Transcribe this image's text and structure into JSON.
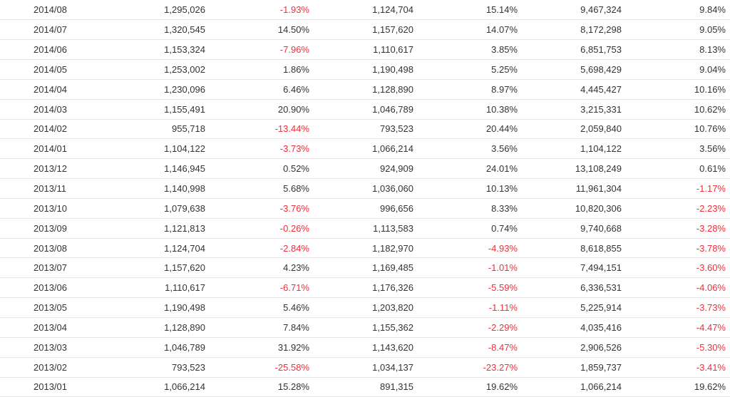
{
  "table": {
    "rows": [
      {
        "period": "2014/08",
        "a": "1,295,026",
        "b": "-1.93%",
        "c": "1,124,704",
        "d": "15.14%",
        "e": "9,467,324",
        "f": "9.84%"
      },
      {
        "period": "2014/07",
        "a": "1,320,545",
        "b": "14.50%",
        "c": "1,157,620",
        "d": "14.07%",
        "e": "8,172,298",
        "f": "9.05%"
      },
      {
        "period": "2014/06",
        "a": "1,153,324",
        "b": "-7.96%",
        "c": "1,110,617",
        "d": "3.85%",
        "e": "6,851,753",
        "f": "8.13%"
      },
      {
        "period": "2014/05",
        "a": "1,253,002",
        "b": "1.86%",
        "c": "1,190,498",
        "d": "5.25%",
        "e": "5,698,429",
        "f": "9.04%"
      },
      {
        "period": "2014/04",
        "a": "1,230,096",
        "b": "6.46%",
        "c": "1,128,890",
        "d": "8.97%",
        "e": "4,445,427",
        "f": "10.16%"
      },
      {
        "period": "2014/03",
        "a": "1,155,491",
        "b": "20.90%",
        "c": "1,046,789",
        "d": "10.38%",
        "e": "3,215,331",
        "f": "10.62%"
      },
      {
        "period": "2014/02",
        "a": "955,718",
        "b": "-13.44%",
        "c": "793,523",
        "d": "20.44%",
        "e": "2,059,840",
        "f": "10.76%"
      },
      {
        "period": "2014/01",
        "a": "1,104,122",
        "b": "-3.73%",
        "c": "1,066,214",
        "d": "3.56%",
        "e": "1,104,122",
        "f": "3.56%"
      },
      {
        "period": "2013/12",
        "a": "1,146,945",
        "b": "0.52%",
        "c": "924,909",
        "d": "24.01%",
        "e": "13,108,249",
        "f": "0.61%"
      },
      {
        "period": "2013/11",
        "a": "1,140,998",
        "b": "5.68%",
        "c": "1,036,060",
        "d": "10.13%",
        "e": "11,961,304",
        "f": "-1.17%"
      },
      {
        "period": "2013/10",
        "a": "1,079,638",
        "b": "-3.76%",
        "c": "996,656",
        "d": "8.33%",
        "e": "10,820,306",
        "f": "-2.23%"
      },
      {
        "period": "2013/09",
        "a": "1,121,813",
        "b": "-0.26%",
        "c": "1,113,583",
        "d": "0.74%",
        "e": "9,740,668",
        "f": "-3.28%"
      },
      {
        "period": "2013/08",
        "a": "1,124,704",
        "b": "-2.84%",
        "c": "1,182,970",
        "d": "-4.93%",
        "e": "8,618,855",
        "f": "-3.78%"
      },
      {
        "period": "2013/07",
        "a": "1,157,620",
        "b": "4.23%",
        "c": "1,169,485",
        "d": "-1.01%",
        "e": "7,494,151",
        "f": "-3.60%"
      },
      {
        "period": "2013/06",
        "a": "1,110,617",
        "b": "-6.71%",
        "c": "1,176,326",
        "d": "-5.59%",
        "e": "6,336,531",
        "f": "-4.06%"
      },
      {
        "period": "2013/05",
        "a": "1,190,498",
        "b": "5.46%",
        "c": "1,203,820",
        "d": "-1.11%",
        "e": "5,225,914",
        "f": "-3.73%"
      },
      {
        "period": "2013/04",
        "a": "1,128,890",
        "b": "7.84%",
        "c": "1,155,362",
        "d": "-2.29%",
        "e": "4,035,416",
        "f": "-4.47%"
      },
      {
        "period": "2013/03",
        "a": "1,046,789",
        "b": "31.92%",
        "c": "1,143,620",
        "d": "-8.47%",
        "e": "2,906,526",
        "f": "-5.30%"
      },
      {
        "period": "2013/02",
        "a": "793,523",
        "b": "-25.58%",
        "c": "1,034,137",
        "d": "-23.27%",
        "e": "1,859,737",
        "f": "-3.41%"
      },
      {
        "period": "2013/01",
        "a": "1,066,214",
        "b": "15.28%",
        "c": "891,315",
        "d": "19.62%",
        "e": "1,066,214",
        "f": "19.62%"
      }
    ]
  },
  "colors": {
    "negative": "#ee2f3a",
    "text": "#333333",
    "border": "#e6e6e6"
  }
}
